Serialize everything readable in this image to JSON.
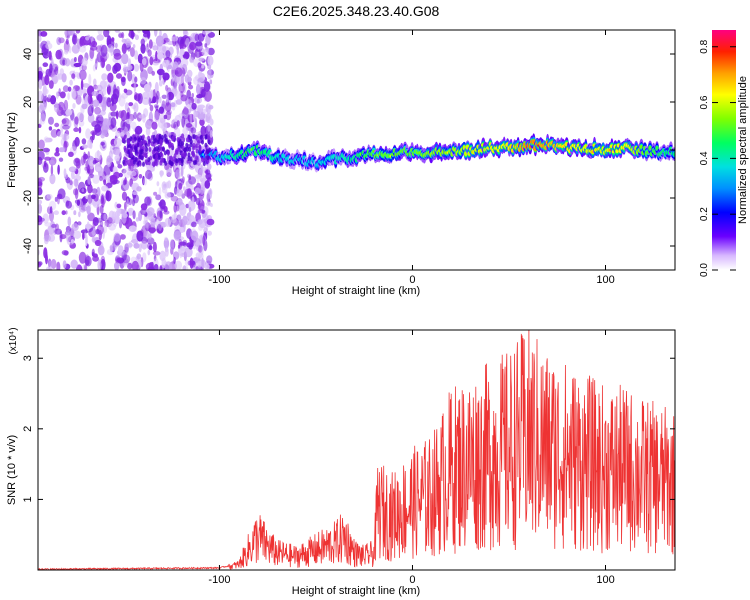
{
  "figure_title": "C2E6.2025.348.23.40.G08",
  "chart_data": [
    {
      "type": "heatmap",
      "xlabel": "Height of straight line (km)",
      "ylabel": "Frequency (Hz)",
      "xlim": [
        -194,
        136
      ],
      "ylim": [
        -50,
        50
      ],
      "x_ticks": [
        -100,
        0,
        100
      ],
      "y_ticks": [
        -40,
        -20,
        0,
        20,
        40
      ],
      "signal_trace": {
        "x": [
          -110,
          -100,
          -90,
          -80,
          -70,
          -60,
          -50,
          -40,
          -30,
          -20,
          -10,
          0,
          10,
          20,
          30,
          40,
          50,
          60,
          70,
          80,
          90,
          100,
          110,
          120,
          136
        ],
        "center_freq": [
          -2,
          -3,
          -2,
          0,
          -3,
          -4,
          -5,
          -4,
          -3,
          -2,
          -1,
          -1,
          -1,
          -1,
          0,
          1,
          1,
          2,
          2,
          1,
          1,
          0,
          1,
          0,
          -1
        ],
        "peak_amplitude": [
          0.3,
          0.4,
          0.5,
          0.55,
          0.45,
          0.4,
          0.4,
          0.45,
          0.5,
          0.6,
          0.6,
          0.6,
          0.65,
          0.65,
          0.7,
          0.7,
          0.75,
          0.85,
          0.8,
          0.75,
          0.7,
          0.7,
          0.75,
          0.6,
          0.5
        ]
      },
      "noise_region_x": [
        -194,
        -104
      ],
      "colorbar": {
        "label": "Normalized spectral amplitude",
        "ticks": [
          "0.0",
          "0.2",
          "0.4",
          "0.6",
          "0.8"
        ],
        "range": [
          0,
          0.86
        ]
      }
    },
    {
      "type": "line",
      "xlabel": "Height of straight line (km)",
      "ylabel": "SNR (10 * v/v)",
      "y_scale_label": "(x10⁴)",
      "xlim": [
        -194,
        136
      ],
      "ylim": [
        0,
        3.4
      ],
      "x_ticks": [
        -100,
        0,
        100
      ],
      "y_ticks": [
        1,
        2,
        3
      ],
      "series": [
        {
          "name": "SNR",
          "color": "#ee3333",
          "x": [
            -194,
            -100,
            -90,
            -85,
            -80,
            -75,
            -70,
            -60,
            -50,
            -40,
            -35,
            -30,
            -25,
            -20,
            -18,
            -10,
            0,
            10,
            20,
            30,
            40,
            50,
            60,
            70,
            80,
            90,
            100,
            110,
            120,
            136
          ],
          "values": [
            0.0,
            0.02,
            0.08,
            0.3,
            0.5,
            0.35,
            0.25,
            0.2,
            0.3,
            0.4,
            0.5,
            0.25,
            0.2,
            0.25,
            0.9,
            0.8,
            1.0,
            1.1,
            1.5,
            1.6,
            1.7,
            1.8,
            2.0,
            1.8,
            1.7,
            1.6,
            1.5,
            1.5,
            1.4,
            1.3
          ]
        }
      ]
    }
  ],
  "colors": {
    "line": "#ee3333",
    "noise": "#8a2be2"
  }
}
